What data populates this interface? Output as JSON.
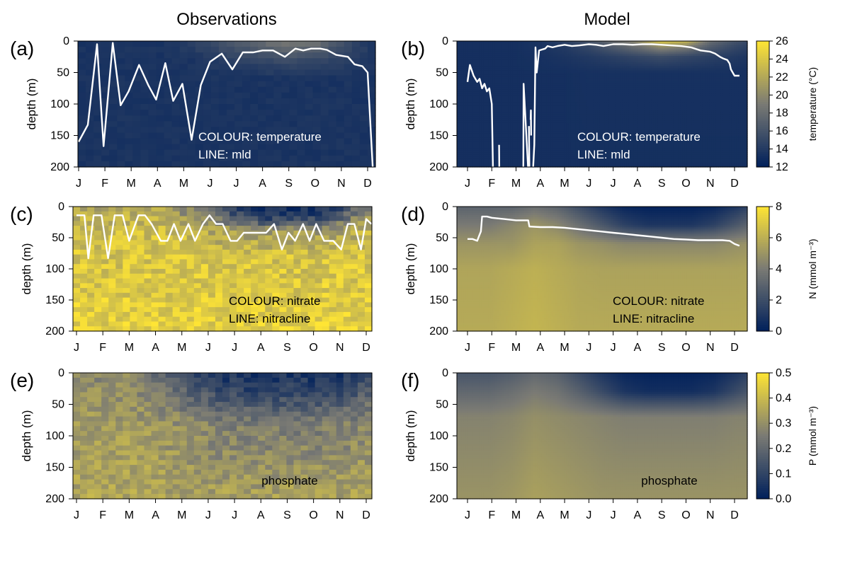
{
  "figure": {
    "col_titles": [
      "Observations",
      "Model"
    ]
  },
  "palette": {
    "low": "#00205b",
    "mid": "#7a7a74",
    "high": "#ffe534",
    "line": "#ffffff"
  },
  "chart_data": [
    {
      "id": "a",
      "type": "heatmap",
      "letter": "(a)",
      "source": "observations",
      "ylabel": "depth (m)",
      "ylim": [
        0,
        200
      ],
      "yticks": [
        0,
        50,
        100,
        150,
        200
      ],
      "months": [
        "J",
        "F",
        "M",
        "A",
        "M",
        "J",
        "J",
        "A",
        "S",
        "O",
        "N",
        "D"
      ],
      "colour_var": "temperature",
      "clim": [
        12,
        26
      ],
      "annotation": [
        "COLOUR: temperature",
        "LINE: mld"
      ],
      "line": {
        "name": "mld",
        "x": [
          1.0,
          1.35,
          1.7,
          1.95,
          2.3,
          2.6,
          2.9,
          3.3,
          3.65,
          3.95,
          4.3,
          4.6,
          4.95,
          5.3,
          5.65,
          6.0,
          6.45,
          6.85,
          7.25,
          7.65,
          8.0,
          8.4,
          8.85,
          9.25,
          9.55,
          9.85,
          10.2,
          10.45,
          10.8,
          11.25,
          11.5,
          11.8,
          12.0,
          12.2
        ],
        "y": [
          160,
          133,
          5,
          167,
          3,
          102,
          80,
          38,
          70,
          93,
          35,
          95,
          68,
          157,
          70,
          33,
          20,
          45,
          18,
          18,
          15,
          15,
          25,
          12,
          15,
          12,
          12,
          14,
          22,
          25,
          37,
          40,
          50,
          205
        ]
      },
      "anchors": [
        {
          "depth": 0,
          "months": [
            13.5,
            13.5,
            13.5,
            13.5,
            14,
            15,
            16.5,
            18,
            19,
            18.5,
            16,
            14,
            13.5
          ]
        },
        {
          "depth": 10,
          "months": [
            13.5,
            13.5,
            13.5,
            13.5,
            14,
            15,
            16,
            17,
            18,
            17.5,
            15.5,
            14,
            13.5
          ]
        },
        {
          "depth": 30,
          "months": [
            13.5,
            13.5,
            13.5,
            13.5,
            13.5,
            14,
            14.5,
            15,
            15.5,
            15,
            14.5,
            14,
            13.5
          ]
        },
        {
          "depth": 60,
          "months": [
            13.5,
            13.5,
            13.5,
            13.5,
            13.5,
            13.5,
            13.5,
            13.5,
            13.5,
            13.5,
            13.5,
            13.5,
            13.5
          ]
        },
        {
          "depth": 200,
          "months": [
            13.5,
            13.5,
            13.5,
            13.5,
            13.5,
            13.5,
            13.5,
            13.5,
            13.5,
            13.5,
            13.5,
            13.5,
            13.5
          ]
        }
      ]
    },
    {
      "id": "b",
      "type": "heatmap",
      "letter": "(b)",
      "source": "model",
      "ylabel": "depth (m)",
      "ylim": [
        0,
        200
      ],
      "yticks": [
        0,
        50,
        100,
        150,
        200
      ],
      "months": [
        "J",
        "F",
        "M",
        "A",
        "M",
        "J",
        "J",
        "A",
        "S",
        "O",
        "N",
        "D"
      ],
      "colour_var": "temperature",
      "clim": [
        12,
        26
      ],
      "annotation": [
        "COLOUR: temperature",
        "LINE: mld"
      ],
      "colorbar": {
        "label": "temperature (°C)",
        "ticks": [
          12,
          14,
          16,
          18,
          20,
          22,
          24,
          26
        ]
      },
      "line": {
        "name": "mld",
        "x": [
          1.0,
          1.1,
          1.25,
          1.4,
          1.5,
          1.6,
          1.7,
          1.8,
          1.9,
          2.0,
          2.05,
          2.06,
          2.3,
          2.31,
          3.3,
          3.3,
          3.31,
          3.5,
          3.51,
          3.53,
          3.55,
          3.56,
          3.6,
          3.61,
          3.62,
          3.65,
          3.7,
          3.75,
          3.8,
          3.85,
          3.95,
          4.2,
          4.3,
          4.5,
          4.7,
          5.0,
          5.3,
          5.6,
          6.0,
          6.3,
          6.6,
          7.0,
          7.4,
          7.8,
          8.2,
          8.6,
          9.0,
          9.4,
          9.8,
          10.2,
          10.6,
          11.0,
          11.2,
          11.4,
          11.55,
          11.7,
          11.8,
          11.85,
          12.0,
          12.1,
          12.2
        ],
        "y": [
          65,
          38,
          55,
          65,
          60,
          75,
          68,
          80,
          75,
          100,
          205,
          null,
          165,
          205,
          null,
          205,
          68,
          205,
          null,
          135,
          205,
          null,
          125,
          110,
          150,
          null,
          205,
          165,
          10,
          50,
          15,
          12,
          8,
          10,
          8,
          6,
          8,
          7,
          5,
          6,
          8,
          5,
          5,
          6,
          5,
          5,
          6,
          7,
          8,
          10,
          15,
          17,
          20,
          25,
          28,
          30,
          36,
          45,
          55,
          55,
          55
        ]
      },
      "anchors": [
        {
          "depth": 0,
          "months": [
            13.2,
            13.2,
            13.2,
            13.5,
            14.5,
            16,
            18,
            20,
            24,
            23,
            18,
            16,
            14.5
          ]
        },
        {
          "depth": 10,
          "months": [
            13.2,
            13.2,
            13.2,
            13.5,
            14,
            15,
            16.5,
            18,
            20,
            19,
            16.5,
            15,
            14
          ]
        },
        {
          "depth": 25,
          "months": [
            13.2,
            13.2,
            13.2,
            13.3,
            13.6,
            14,
            14.5,
            15,
            15.5,
            15,
            14.5,
            14,
            13.5
          ]
        },
        {
          "depth": 50,
          "months": [
            13.2,
            13.2,
            13.2,
            13.2,
            13.2,
            13.3,
            13.3,
            13.3,
            13.3,
            13.3,
            13.3,
            13.3,
            13.3
          ]
        },
        {
          "depth": 200,
          "months": [
            13.2,
            13.2,
            13.2,
            13.2,
            13.2,
            13.2,
            13.2,
            13.2,
            13.2,
            13.2,
            13.2,
            13.2,
            13.2
          ]
        }
      ]
    },
    {
      "id": "c",
      "type": "heatmap",
      "letter": "(c)",
      "source": "observations",
      "ylabel": "depth (m)",
      "ylim": [
        0,
        200
      ],
      "yticks": [
        0,
        50,
        100,
        150,
        200
      ],
      "months": [
        "J",
        "F",
        "M",
        "A",
        "M",
        "J",
        "J",
        "A",
        "S",
        "O",
        "N",
        "D"
      ],
      "colour_var": "nitrate",
      "clim": [
        0,
        8
      ],
      "annotation": [
        "COLOUR: nitrate",
        "LINE: nitracline"
      ],
      "line": {
        "name": "nitracline",
        "x": [
          1.0,
          1.3,
          1.45,
          1.65,
          1.95,
          2.2,
          2.45,
          2.75,
          3.0,
          3.35,
          3.6,
          3.85,
          4.2,
          4.45,
          4.7,
          4.95,
          5.25,
          5.5,
          5.8,
          6.05,
          6.3,
          6.55,
          6.85,
          7.1,
          7.35,
          7.65,
          7.9,
          8.2,
          8.5,
          8.8,
          9.05,
          9.3,
          9.6,
          9.85,
          10.1,
          10.4,
          10.75,
          11.05,
          11.3,
          11.55,
          11.8,
          12.0,
          12.2
        ],
        "y": [
          14,
          14,
          83,
          14,
          14,
          83,
          14,
          14,
          55,
          14,
          14,
          28,
          55,
          55,
          28,
          55,
          28,
          55,
          28,
          14,
          28,
          28,
          55,
          55,
          42,
          42,
          42,
          42,
          28,
          69,
          42,
          55,
          28,
          55,
          28,
          55,
          55,
          69,
          28,
          28,
          69,
          20,
          28
        ]
      },
      "anchors": [
        {
          "depth": 0,
          "months": [
            5.5,
            5.5,
            5.5,
            5.5,
            5,
            4,
            2,
            0.6,
            0.3,
            0.3,
            0.4,
            2,
            4,
            5.5
          ]
        },
        {
          "depth": 15,
          "months": [
            6,
            6,
            6,
            6,
            5.5,
            4.5,
            3,
            1.5,
            1,
            1,
            1.5,
            3,
            5,
            6
          ]
        },
        {
          "depth": 40,
          "months": [
            6.5,
            6.5,
            6.5,
            6.5,
            6.5,
            6,
            5.5,
            5,
            5,
            5,
            5,
            5.5,
            6,
            6.5
          ]
        },
        {
          "depth": 80,
          "months": [
            6.8,
            6.8,
            6.8,
            6.8,
            6.8,
            6.8,
            6.7,
            6.7,
            6.7,
            6.7,
            6.7,
            6.8,
            6.8,
            6.8
          ]
        },
        {
          "depth": 200,
          "months": [
            7.2,
            7.2,
            7.2,
            7.2,
            7.2,
            7.2,
            7.2,
            7.2,
            7.2,
            7.2,
            7.2,
            7.2,
            7.2,
            7.2
          ]
        }
      ]
    },
    {
      "id": "d",
      "type": "heatmap",
      "letter": "(d)",
      "source": "model",
      "ylabel": "depth (m)",
      "ylim": [
        0,
        200
      ],
      "yticks": [
        0,
        50,
        100,
        150,
        200
      ],
      "months": [
        "J",
        "F",
        "M",
        "A",
        "M",
        "J",
        "J",
        "A",
        "S",
        "O",
        "N",
        "D"
      ],
      "colour_var": "nitrate",
      "clim": [
        0,
        8
      ],
      "annotation": [
        "COLOUR: nitrate",
        "LINE: nitracline"
      ],
      "colorbar": {
        "label": "N (mmol m⁻³)",
        "ticks": [
          0,
          2,
          4,
          6,
          8
        ]
      },
      "line": {
        "name": "nitracline",
        "x": [
          1.0,
          1.2,
          1.4,
          1.5,
          1.55,
          1.6,
          1.8,
          2.0,
          2.5,
          3.0,
          3.5,
          3.55,
          4.0,
          4.5,
          5.0,
          5.5,
          6.0,
          6.5,
          7.0,
          7.5,
          8.0,
          8.5,
          9.0,
          9.5,
          10.0,
          10.5,
          11.0,
          11.5,
          11.8,
          12.0,
          12.2
        ],
        "y": [
          52,
          52,
          55,
          45,
          40,
          16,
          16,
          18,
          20,
          22,
          22,
          32,
          33,
          33,
          34,
          36,
          38,
          40,
          42,
          44,
          46,
          48,
          50,
          52,
          53,
          54,
          54,
          54,
          55,
          60,
          63
        ]
      },
      "anchors": [
        {
          "depth": 0,
          "months": [
            3,
            3,
            3,
            3.5,
            3,
            2,
            1,
            0.3,
            0.1,
            0.1,
            0.1,
            0.3,
            1,
            2
          ]
        },
        {
          "depth": 30,
          "months": [
            4,
            4,
            4.5,
            5,
            4.5,
            3.5,
            2.5,
            1.5,
            1,
            1,
            1,
            1.5,
            2.5,
            3.5
          ]
        },
        {
          "depth": 60,
          "months": [
            5,
            5,
            5,
            5.5,
            5.5,
            5,
            4.8,
            4.5,
            4.5,
            4.5,
            4.5,
            4.5,
            4.8,
            5
          ]
        },
        {
          "depth": 100,
          "months": [
            5.6,
            5.6,
            5.8,
            6,
            5.8,
            5.6,
            5.5,
            5.5,
            5.5,
            5.5,
            5.5,
            5.5,
            5.5,
            5.6
          ]
        },
        {
          "depth": 200,
          "months": [
            5.8,
            5.8,
            6,
            6.2,
            6,
            5.8,
            5.8,
            5.8,
            5.8,
            5.8,
            5.8,
            5.8,
            5.8,
            5.8
          ]
        }
      ]
    },
    {
      "id": "e",
      "type": "heatmap",
      "letter": "(e)",
      "source": "observations",
      "ylabel": "depth (m)",
      "ylim": [
        0,
        200
      ],
      "yticks": [
        0,
        50,
        100,
        150,
        200
      ],
      "months": [
        "J",
        "F",
        "M",
        "A",
        "M",
        "J",
        "J",
        "A",
        "S",
        "O",
        "N",
        "D"
      ],
      "colour_var": "phosphate",
      "clim": [
        0,
        0.5
      ],
      "annotation": [
        "phosphate"
      ],
      "anchors": [
        {
          "depth": 0,
          "months": [
            0.28,
            0.28,
            0.28,
            0.22,
            0.14,
            0.08,
            0.05,
            0.05,
            0.05,
            0.05,
            0.05,
            0.06,
            0.12,
            0.22
          ]
        },
        {
          "depth": 30,
          "months": [
            0.3,
            0.3,
            0.3,
            0.27,
            0.22,
            0.16,
            0.12,
            0.1,
            0.1,
            0.1,
            0.1,
            0.12,
            0.18,
            0.25
          ]
        },
        {
          "depth": 80,
          "months": [
            0.32,
            0.32,
            0.33,
            0.32,
            0.3,
            0.28,
            0.26,
            0.25,
            0.25,
            0.25,
            0.25,
            0.26,
            0.28,
            0.3
          ]
        },
        {
          "depth": 200,
          "months": [
            0.35,
            0.35,
            0.35,
            0.35,
            0.34,
            0.34,
            0.34,
            0.34,
            0.34,
            0.34,
            0.34,
            0.34,
            0.35,
            0.35
          ]
        }
      ]
    },
    {
      "id": "f",
      "type": "heatmap",
      "letter": "(f)",
      "source": "model",
      "ylabel": "depth (m)",
      "ylim": [
        0,
        200
      ],
      "yticks": [
        0,
        50,
        100,
        150,
        200
      ],
      "months": [
        "J",
        "F",
        "M",
        "A",
        "M",
        "J",
        "J",
        "A",
        "S",
        "O",
        "N",
        "D"
      ],
      "colour_var": "phosphate",
      "clim": [
        0,
        0.5
      ],
      "annotation": [
        "phosphate"
      ],
      "colorbar": {
        "label": "P (mmol m⁻³)",
        "ticks": [
          0.0,
          0.1,
          0.2,
          0.3,
          0.4,
          0.5
        ]
      },
      "anchors": [
        {
          "depth": 0,
          "months": [
            0.15,
            0.15,
            0.17,
            0.2,
            0.18,
            0.12,
            0.06,
            0.02,
            0.01,
            0.01,
            0.01,
            0.02,
            0.06,
            0.12
          ]
        },
        {
          "depth": 30,
          "months": [
            0.2,
            0.2,
            0.22,
            0.25,
            0.23,
            0.18,
            0.12,
            0.06,
            0.04,
            0.04,
            0.04,
            0.06,
            0.12,
            0.18
          ]
        },
        {
          "depth": 70,
          "months": [
            0.27,
            0.27,
            0.28,
            0.3,
            0.29,
            0.28,
            0.27,
            0.26,
            0.26,
            0.26,
            0.26,
            0.26,
            0.27,
            0.27
          ]
        },
        {
          "depth": 200,
          "months": [
            0.31,
            0.31,
            0.32,
            0.34,
            0.33,
            0.32,
            0.31,
            0.31,
            0.31,
            0.31,
            0.31,
            0.31,
            0.31,
            0.31
          ]
        }
      ]
    }
  ]
}
